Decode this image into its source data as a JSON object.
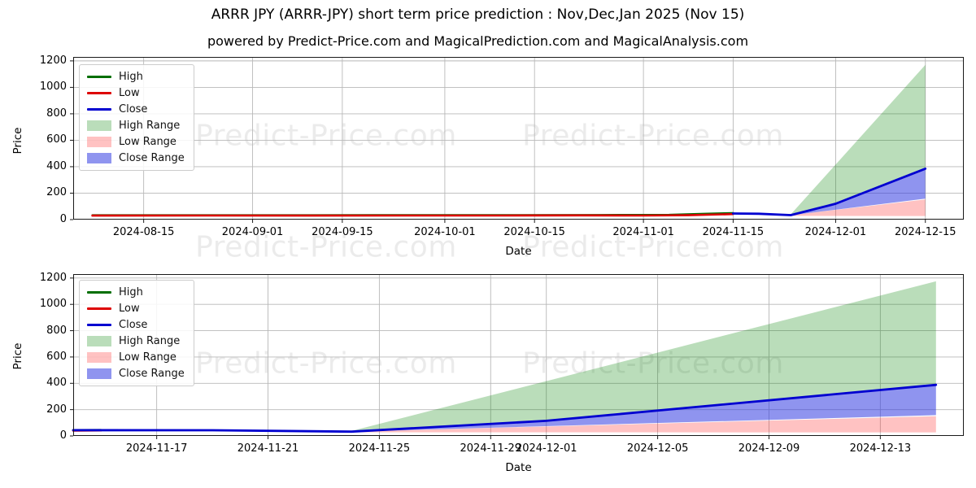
{
  "header": {
    "title": "ARRR JPY (ARRR-JPY) short term price prediction : Nov,Dec,Jan 2025 (Nov 15)",
    "subtitle": "powered by Predict-Price.com and MagicalPrediction.com and MagicalAnalysis.com"
  },
  "watermark": {
    "text": "Predict-Price.com"
  },
  "colors": {
    "high_line": "#006e00",
    "low_line": "#dd0000",
    "close_line": "#0000d0",
    "high_range_fill": "rgba(0,128,0,0.27)",
    "low_range_fill": "rgba(255,0,0,0.24)",
    "close_range_fill": "rgba(40,50,225,0.52)",
    "grid": "#b8b8b8",
    "axis_border": "#1a1a1a"
  },
  "chart_data": [
    {
      "type": "area",
      "name": "full-history-prediction-chart",
      "xlabel": "Date",
      "ylabel": "Price",
      "ylim": [
        0,
        1230
      ],
      "yticks": [
        0,
        200,
        400,
        600,
        800,
        1000,
        1200
      ],
      "xlim": [
        "2024-08-04",
        "2024-12-21"
      ],
      "xticks": [
        "2024-08-15",
        "2024-09-01",
        "2024-09-15",
        "2024-10-01",
        "2024-10-15",
        "2024-11-01",
        "2024-11-15",
        "2024-12-01",
        "2024-12-15"
      ],
      "grid": true,
      "legend_position": "upper left",
      "legend": [
        {
          "label": "High",
          "type": "line",
          "color": "#006e00"
        },
        {
          "label": "Low",
          "type": "line",
          "color": "#dd0000"
        },
        {
          "label": "Close",
          "type": "line",
          "color": "#0000d0"
        },
        {
          "label": "High Range",
          "type": "patch",
          "color": "rgba(0,128,0,0.27)"
        },
        {
          "label": "Low Range",
          "type": "patch",
          "color": "rgba(255,0,0,0.24)"
        },
        {
          "label": "Close Range",
          "type": "patch",
          "color": "rgba(40,50,225,0.52)"
        }
      ],
      "bands": [
        {
          "name": "High Range",
          "color": "rgba(0,128,0,0.27)",
          "upper": [
            [
              "2024-11-24",
              40
            ],
            [
              "2024-12-15",
              1170
            ]
          ],
          "lower": [
            [
              "2024-11-24",
              34
            ],
            [
              "2024-12-01",
              120
            ],
            [
              "2024-12-15",
              385
            ]
          ]
        },
        {
          "name": "Low Range",
          "color": "rgba(255,0,0,0.24)",
          "upper": [
            [
              "2024-11-24",
              34
            ],
            [
              "2024-12-15",
              152
            ]
          ],
          "lower": [
            [
              "2024-11-24",
              28
            ],
            [
              "2024-12-15",
              27
            ]
          ]
        },
        {
          "name": "Close Range",
          "color": "rgba(40,50,225,0.52)",
          "upper": [
            [
              "2024-11-24",
              34
            ],
            [
              "2024-12-01",
              120
            ],
            [
              "2024-12-15",
              385
            ]
          ],
          "lower": [
            [
              "2024-11-24",
              33
            ],
            [
              "2024-12-15",
              158
            ]
          ]
        }
      ],
      "lines": [
        {
          "name": "High",
          "color": "#006e00",
          "width": 2.4,
          "points": [
            [
              "2024-08-07",
              33
            ],
            [
              "2024-09-01",
              33
            ],
            [
              "2024-09-20",
              34
            ],
            [
              "2024-10-10",
              34
            ],
            [
              "2024-10-25",
              35
            ],
            [
              "2024-11-05",
              36
            ],
            [
              "2024-11-11",
              45
            ],
            [
              "2024-11-15",
              50
            ]
          ]
        },
        {
          "name": "Low",
          "color": "#dd0000",
          "width": 2.6,
          "points": [
            [
              "2024-08-07",
              30
            ],
            [
              "2024-08-25",
              31
            ],
            [
              "2024-09-10",
              30
            ],
            [
              "2024-09-25",
              31
            ],
            [
              "2024-10-10",
              31
            ],
            [
              "2024-10-22",
              32
            ],
            [
              "2024-11-01",
              31
            ],
            [
              "2024-11-08",
              33
            ],
            [
              "2024-11-15",
              42
            ]
          ]
        },
        {
          "name": "Close",
          "color": "#0000d0",
          "width": 2.8,
          "points": [
            [
              "2024-11-15",
              46
            ],
            [
              "2024-11-19",
              44
            ],
            [
              "2024-11-24",
              34
            ],
            [
              "2024-12-01",
              120
            ],
            [
              "2024-12-15",
              385
            ]
          ]
        }
      ]
    },
    {
      "type": "area",
      "name": "short-term-prediction-chart",
      "xlabel": "Date",
      "ylabel": "Price",
      "ylim": [
        0,
        1230
      ],
      "yticks": [
        0,
        200,
        400,
        600,
        800,
        1000,
        1200
      ],
      "xlim": [
        "2024-11-14",
        "2024-12-16"
      ],
      "xticks": [
        "2024-11-17",
        "2024-11-21",
        "2024-11-25",
        "2024-11-29",
        "2024-12-01",
        "2024-12-05",
        "2024-12-09",
        "2024-12-13"
      ],
      "grid": true,
      "legend_position": "upper left",
      "legend": [
        {
          "label": "High",
          "type": "line",
          "color": "#006e00"
        },
        {
          "label": "Low",
          "type": "line",
          "color": "#dd0000"
        },
        {
          "label": "Close",
          "type": "line",
          "color": "#0000d0"
        },
        {
          "label": "High Range",
          "type": "patch",
          "color": "rgba(0,128,0,0.27)"
        },
        {
          "label": "Low Range",
          "type": "patch",
          "color": "rgba(255,0,0,0.24)"
        },
        {
          "label": "Close Range",
          "type": "patch",
          "color": "rgba(40,50,225,0.52)"
        }
      ],
      "bands": [
        {
          "name": "High Range",
          "color": "rgba(0,128,0,0.27)",
          "upper": [
            [
              "2024-11-24",
              38
            ],
            [
              "2024-12-15",
              1175
            ]
          ],
          "lower": [
            [
              "2024-11-24",
              33
            ],
            [
              "2024-12-01",
              115
            ],
            [
              "2024-12-15",
              388
            ]
          ]
        },
        {
          "name": "Low Range",
          "color": "rgba(255,0,0,0.24)",
          "upper": [
            [
              "2024-11-24",
              33
            ],
            [
              "2024-12-15",
              150
            ]
          ],
          "lower": [
            [
              "2024-11-24",
              28
            ],
            [
              "2024-12-15",
              27
            ]
          ]
        },
        {
          "name": "Close Range",
          "color": "rgba(40,50,225,0.52)",
          "upper": [
            [
              "2024-11-24",
              33
            ],
            [
              "2024-12-01",
              115
            ],
            [
              "2024-12-15",
              388
            ]
          ],
          "lower": [
            [
              "2024-11-24",
              32
            ],
            [
              "2024-12-15",
              158
            ]
          ]
        }
      ],
      "lines": [
        {
          "name": "High",
          "color": "#006e00",
          "width": 2.4,
          "points": [
            [
              "2024-11-14",
              45
            ],
            [
              "2024-11-15",
              46
            ]
          ]
        },
        {
          "name": "Low",
          "color": "#dd0000",
          "width": 2.6,
          "points": [
            [
              "2024-11-14",
              41
            ],
            [
              "2024-11-15",
              42
            ]
          ]
        },
        {
          "name": "Close",
          "color": "#0000d0",
          "width": 2.8,
          "points": [
            [
              "2024-11-14",
              44
            ],
            [
              "2024-11-19",
              43
            ],
            [
              "2024-11-24",
              33
            ],
            [
              "2024-12-01",
              115
            ],
            [
              "2024-12-15",
              388
            ]
          ]
        }
      ]
    }
  ]
}
